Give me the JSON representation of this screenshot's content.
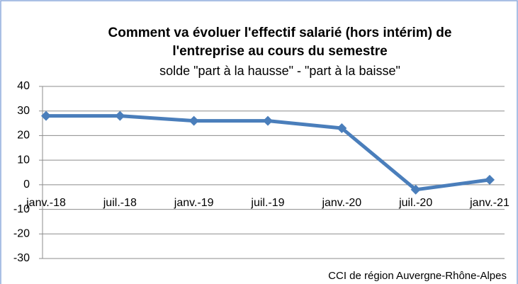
{
  "chart_data": {
    "type": "line",
    "title": [
      "Comment va évoluer l'effectif salarié (hors intérim) de",
      "l'entreprise au cours du semestre"
    ],
    "subtitle": "solde \"part à la hausse\" - \"part à la baisse\"",
    "source": "CCI de région Auvergne-Rhône-Alpes",
    "categories": [
      "janv.-18",
      "juil.-18",
      "janv.-19",
      "juil.-19",
      "janv.-20",
      "juil.-20",
      "janv.-21"
    ],
    "series": [
      {
        "name": "solde",
        "color": "#4a7ebb",
        "values": [
          28,
          28,
          26,
          26,
          23,
          -2,
          2
        ]
      }
    ],
    "ylim": [
      -30,
      40
    ],
    "yticks": [
      -30,
      -20,
      -10,
      0,
      10,
      20,
      30,
      40
    ],
    "grid": true
  }
}
